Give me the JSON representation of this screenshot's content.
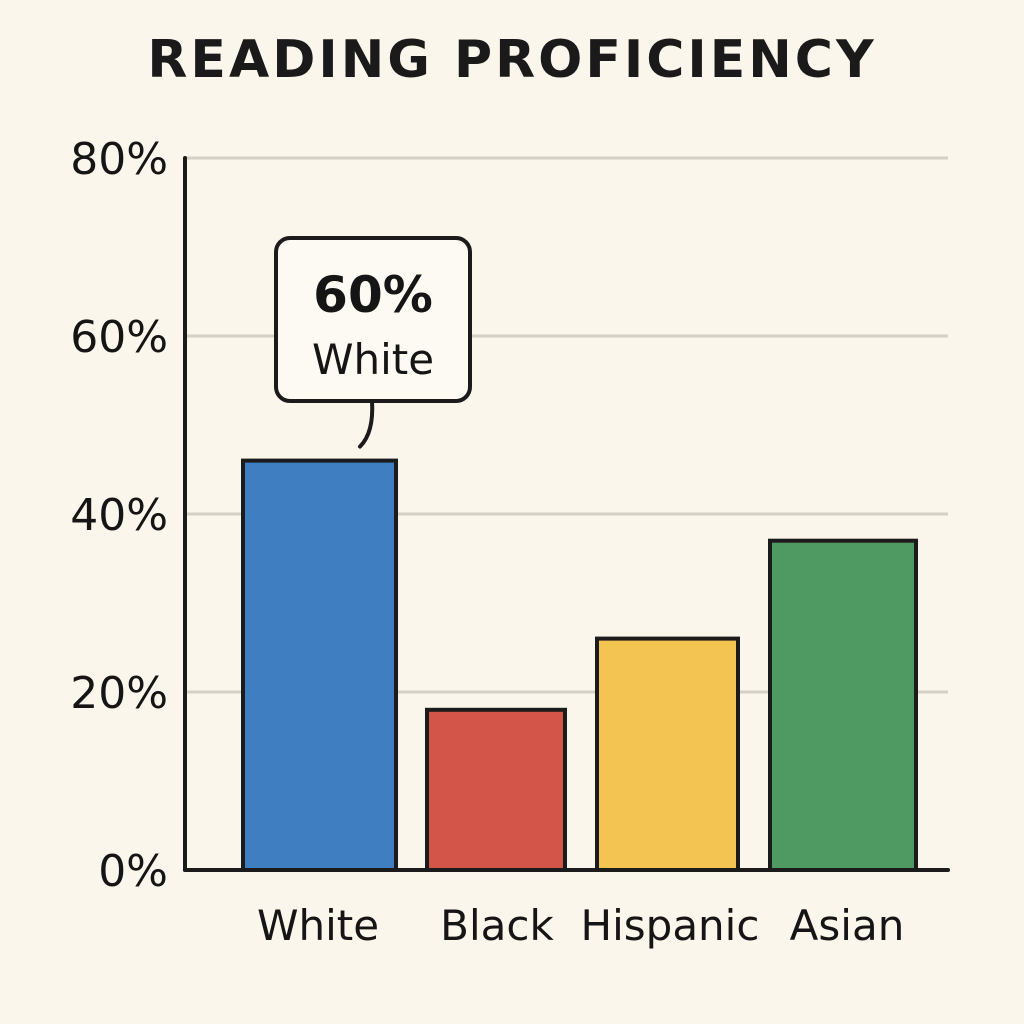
{
  "chart_data": {
    "type": "bar",
    "title": "READING PROFICIENCY",
    "xlabel": "",
    "ylabel": "",
    "categories": [
      "White",
      "Black",
      "Hispanic",
      "Asian"
    ],
    "values": [
      46,
      18,
      26,
      37
    ],
    "colors": [
      "#3f7fc1",
      "#d3554a",
      "#f3c451",
      "#4f9a62"
    ],
    "ylim": [
      0,
      80
    ],
    "y_ticks": [
      0,
      20,
      40,
      60,
      80
    ],
    "y_tick_labels": [
      "0%",
      "20%",
      "40%",
      "60%",
      "80%"
    ],
    "grid": true,
    "annotation": {
      "category": "White",
      "line1": "60%",
      "line2": "White"
    }
  }
}
